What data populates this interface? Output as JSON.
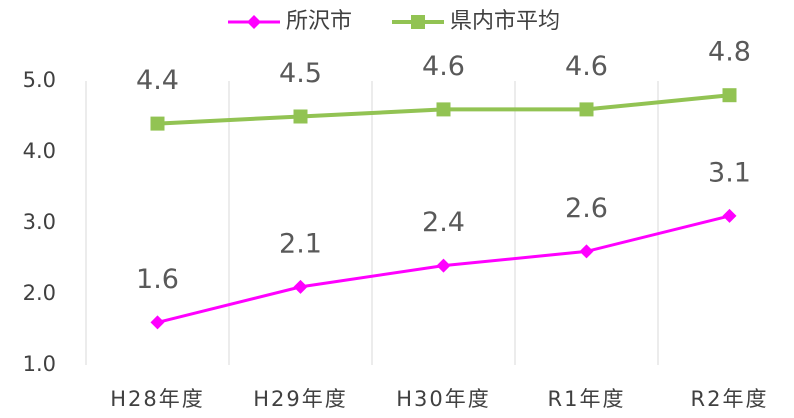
{
  "chart_data": {
    "type": "line",
    "categories": [
      "H28年度",
      "H29年度",
      "H30年度",
      "R1年度",
      "R2年度"
    ],
    "series": [
      {
        "name": "所沢市",
        "color": "#ff00ff",
        "marker": "diamond",
        "values": [
          1.6,
          2.1,
          2.4,
          2.6,
          3.1
        ]
      },
      {
        "name": "県内市平均",
        "color": "#92c353",
        "marker": "square",
        "values": [
          4.4,
          4.5,
          4.6,
          4.6,
          4.8
        ]
      }
    ],
    "ylim": [
      1,
      5
    ],
    "yticks": [
      {
        "value": 1,
        "label": "1.0"
      },
      {
        "value": 2,
        "label": "2.0"
      },
      {
        "value": 3,
        "label": "3.0"
      },
      {
        "value": 4,
        "label": "4.0"
      },
      {
        "value": 5,
        "label": "5.0"
      }
    ],
    "grid": true,
    "legend": "top"
  }
}
